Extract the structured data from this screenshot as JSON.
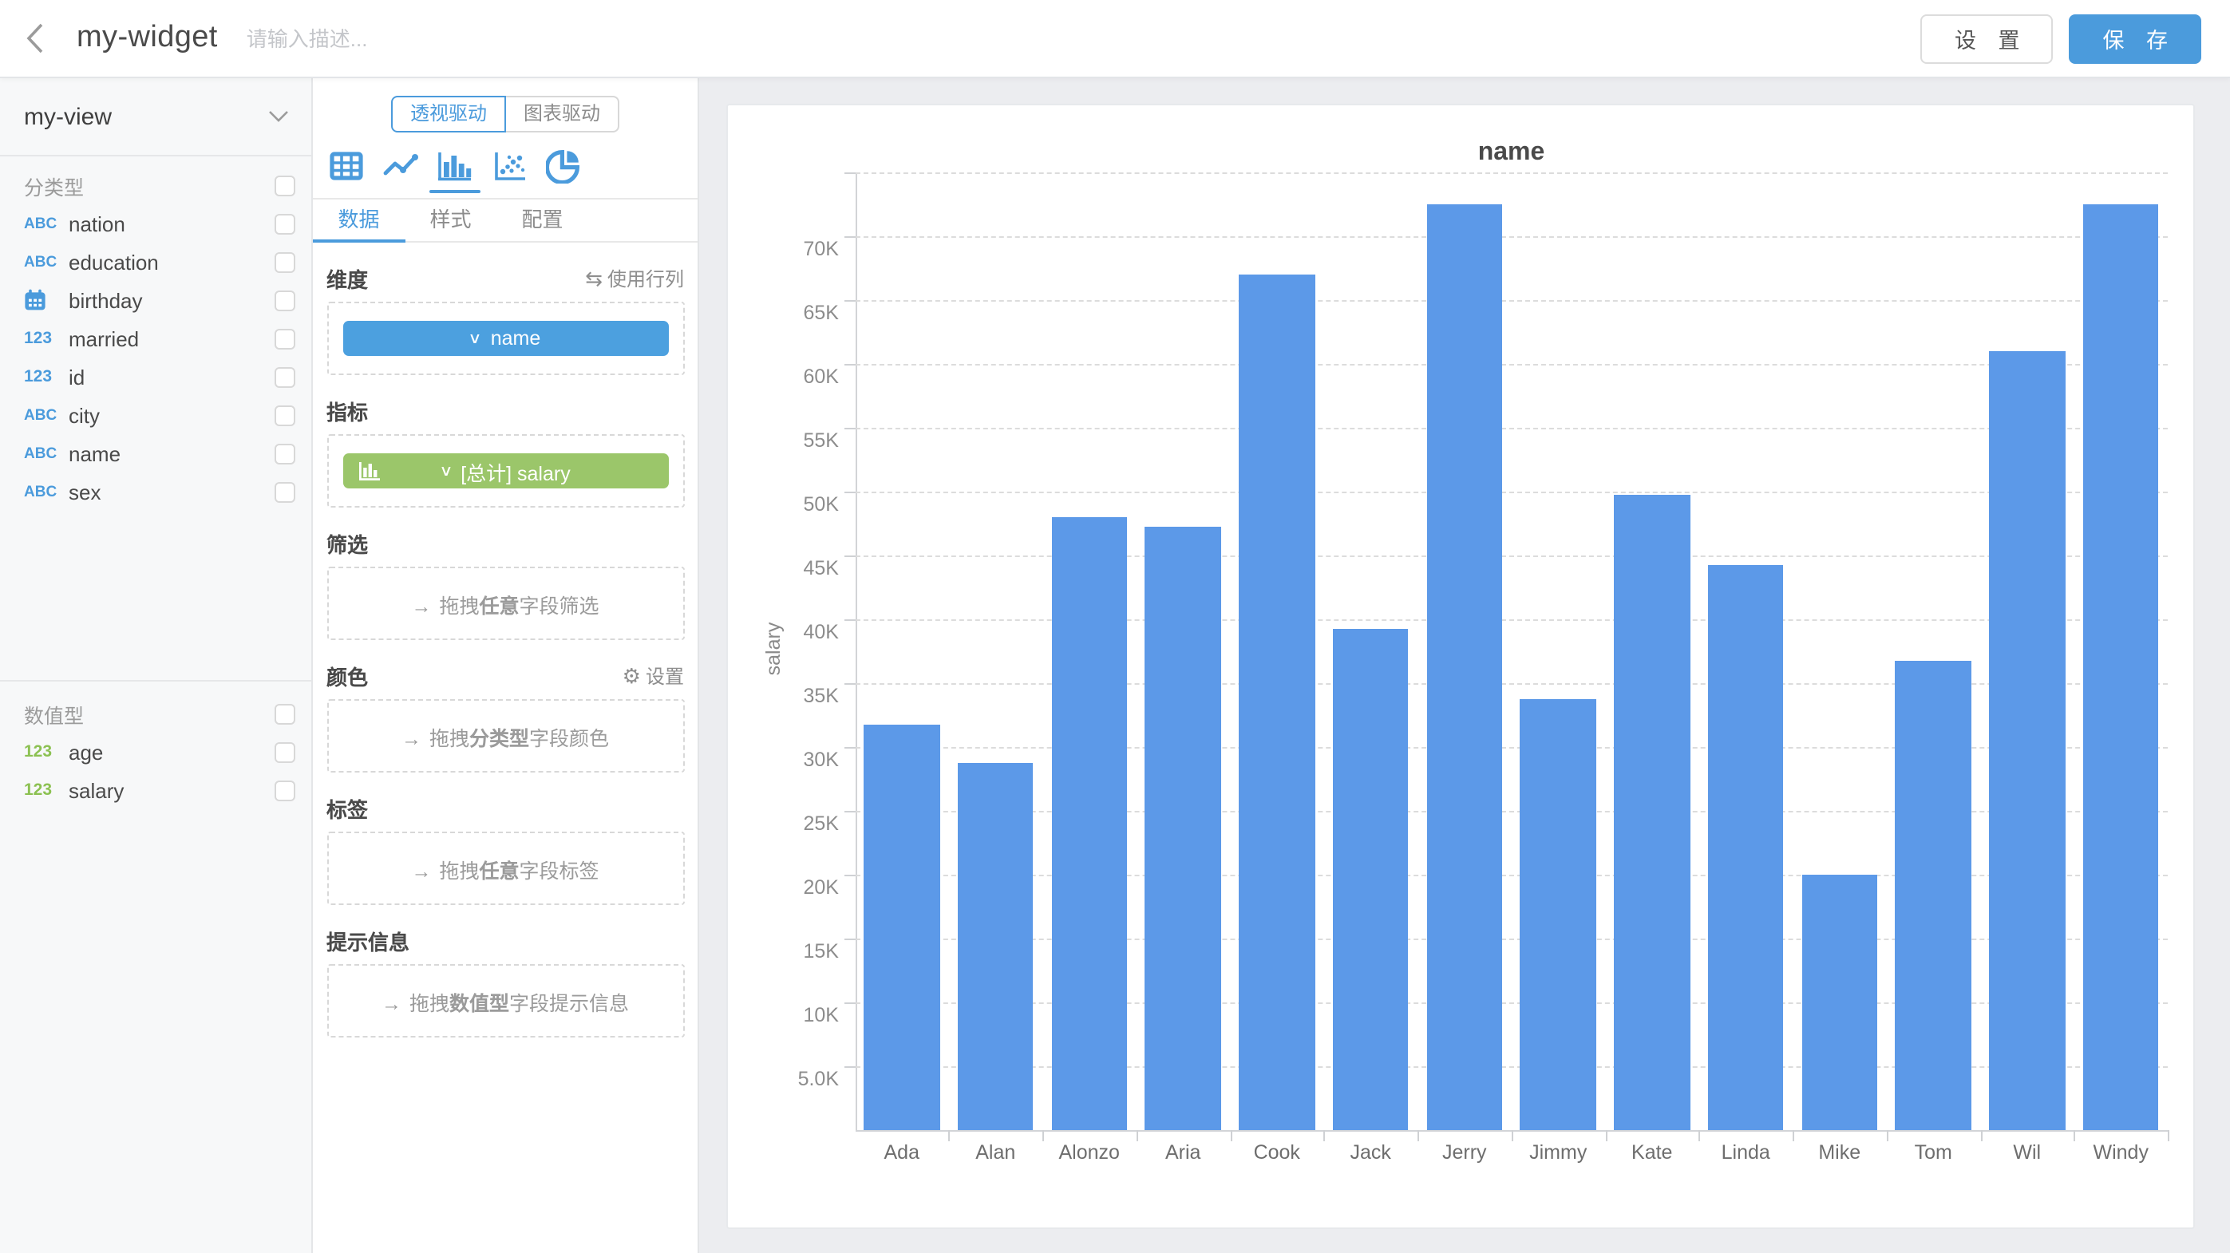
{
  "header": {
    "title": "my-widget",
    "description_placeholder": "请输入描述...",
    "settings_label": "设 置",
    "save_label": "保 存"
  },
  "sidebar": {
    "view_name": "my-view",
    "groups": [
      {
        "label": "分类型",
        "fields": [
          {
            "icon": "abc",
            "name": "nation"
          },
          {
            "icon": "abc",
            "name": "education"
          },
          {
            "icon": "calendar",
            "name": "birthday"
          },
          {
            "icon": "123",
            "name": "married"
          },
          {
            "icon": "123",
            "name": "id"
          },
          {
            "icon": "abc",
            "name": "city"
          },
          {
            "icon": "abc",
            "name": "name"
          },
          {
            "icon": "abc",
            "name": "sex"
          }
        ]
      },
      {
        "label": "数值型",
        "fields": [
          {
            "icon": "123n",
            "name": "age"
          },
          {
            "icon": "123n",
            "name": "salary"
          }
        ]
      }
    ]
  },
  "panel": {
    "mode_pivot": "透视驱动",
    "mode_chart": "图表驱动",
    "active_mode": "pivot",
    "chart_types": [
      "table",
      "line",
      "bar",
      "scatter",
      "pie"
    ],
    "active_chart_type": "bar",
    "tabs": [
      {
        "label": "数据",
        "active": true
      },
      {
        "label": "样式",
        "active": false
      },
      {
        "label": "配置",
        "active": false
      }
    ],
    "drag_arrow": "→",
    "dimension": {
      "label": "维度",
      "action": "使用行列",
      "action_icon": "⇆",
      "chip": "name",
      "chip_chevron": "∨"
    },
    "metric": {
      "label": "指标",
      "chip": "[总计] salary",
      "chip_chevron": "∨"
    },
    "filter": {
      "label": "筛选",
      "hint_pre": "拖拽",
      "hint_em": "任意",
      "hint_post": "字段筛选"
    },
    "color": {
      "label": "颜色",
      "action": "设置",
      "action_icon": "⚙",
      "hint_pre": "拖拽",
      "hint_em": "分类型",
      "hint_post": "字段颜色"
    },
    "tag": {
      "label": "标签",
      "hint_pre": "拖拽",
      "hint_em": "任意",
      "hint_post": "字段标签"
    },
    "tooltip": {
      "label": "提示信息",
      "hint_pre": "拖拽",
      "hint_em": "数值型",
      "hint_post": "字段提示信息"
    }
  },
  "chart_data": {
    "type": "bar",
    "title": "name",
    "ylabel": "salary",
    "categories": [
      "Ada",
      "Alan",
      "Alonzo",
      "Aria",
      "Cook",
      "Jack",
      "Jerry",
      "Jimmy",
      "Kate",
      "Linda",
      "Mike",
      "Tom",
      "Wil",
      "Windy"
    ],
    "values": [
      31750,
      28750,
      48000,
      47250,
      67000,
      39250,
      72500,
      33750,
      49750,
      44250,
      20000,
      36750,
      61000,
      72500
    ],
    "ylim": [
      0,
      75000
    ],
    "ytick_step": 5000,
    "ytick_labels": [
      "5.0K",
      "10K",
      "15K",
      "20K",
      "25K",
      "30K",
      "35K",
      "40K",
      "45K",
      "50K",
      "55K",
      "60K",
      "65K",
      "70K"
    ],
    "grid": "dashed-horizontal",
    "legend": null,
    "bar_color": "#5c99e8"
  },
  "colors": {
    "accent": "#4b9bdc",
    "chip_blue": "#4ca0df",
    "chip_green": "#9bc66a",
    "green_num": "#8cc152",
    "bar": "#5c99e8"
  }
}
